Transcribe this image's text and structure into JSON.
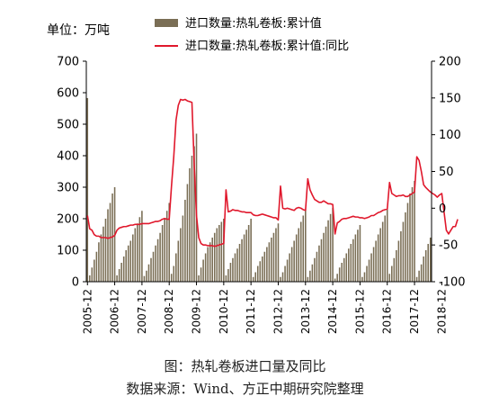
{
  "chart_data": {
    "type": "bar+line",
    "unit_label": "单位：万吨",
    "left_axis": {
      "ylim": [
        0,
        700
      ],
      "ticks": [
        0,
        100,
        200,
        300,
        400,
        500,
        600,
        700
      ]
    },
    "right_axis": {
      "ylim": [
        -100,
        200
      ],
      "ticks": [
        -100,
        -50,
        0,
        50,
        100,
        150,
        200
      ]
    },
    "x_range": [
      "2005-12",
      "2018-12"
    ],
    "x_tick_labels": [
      "2005-12",
      "2006-12",
      "2007-12",
      "2008-12",
      "2009-12",
      "2010-12",
      "2011-12",
      "2012-12",
      "2013-12",
      "2014-12",
      "2015-12",
      "2016-12",
      "2017-12",
      "2018-12"
    ],
    "grid": false,
    "legend": {
      "position": "top",
      "orientation": "vertical"
    },
    "colors": {
      "bars": "#7a6e55",
      "line": "#e0182c",
      "axis": "#000000"
    },
    "series": [
      {
        "name": "进口数量:热轧卷板:累计值",
        "kind": "bar",
        "axis": "left",
        "values": [
          583,
          20,
          45,
          70,
          95,
          125,
          150,
          175,
          200,
          230,
          250,
          280,
          300,
          20,
          40,
          60,
          80,
          100,
          115,
          130,
          150,
          170,
          185,
          205,
          225,
          18,
          35,
          55,
          75,
          95,
          115,
          135,
          155,
          180,
          200,
          225,
          250,
          25,
          50,
          90,
          130,
          170,
          210,
          260,
          310,
          360,
          400,
          430,
          470,
          20,
          45,
          70,
          90,
          110,
          125,
          140,
          155,
          170,
          180,
          190,
          200,
          20,
          40,
          60,
          75,
          90,
          105,
          120,
          135,
          150,
          165,
          180,
          200,
          15,
          30,
          50,
          65,
          80,
          95,
          110,
          125,
          140,
          155,
          170,
          185,
          15,
          30,
          50,
          70,
          90,
          110,
          130,
          150,
          170,
          190,
          210,
          230,
          15,
          35,
          55,
          75,
          95,
          115,
          135,
          155,
          175,
          195,
          215,
          235,
          10,
          25,
          45,
          60,
          75,
          90,
          105,
          120,
          135,
          150,
          165,
          180,
          15,
          30,
          50,
          70,
          90,
          110,
          130,
          150,
          170,
          190,
          210,
          230,
          25,
          50,
          75,
          100,
          130,
          160,
          190,
          220,
          250,
          280,
          300,
          320,
          15,
          35,
          55,
          80,
          100,
          120,
          140
        ]
      },
      {
        "name": "进口数量:热轧卷板:累计值:同比",
        "kind": "line",
        "axis": "right",
        "values": [
          -10,
          -28,
          -30,
          -36,
          -38,
          -38,
          -40,
          -40,
          -40,
          -41,
          -40,
          -39,
          -37,
          -30,
          -27,
          -26,
          -25,
          -25,
          -24,
          -23,
          -23,
          -22,
          -22,
          -22,
          -21,
          -21,
          -21,
          -21,
          -20,
          -19,
          -18,
          -18,
          -17,
          -15,
          -14,
          -15,
          -15,
          30,
          70,
          120,
          140,
          148,
          147,
          148,
          146,
          145,
          144,
          60,
          -10,
          -40,
          -48,
          -50,
          -50,
          -51,
          -51,
          -51,
          -52,
          -51,
          -50,
          -49,
          -48,
          25,
          -5,
          -4,
          -2,
          -3,
          -3,
          -4,
          -5,
          -5,
          -6,
          -6,
          -6,
          -9,
          -10,
          -10,
          -9,
          -8,
          -9,
          -10,
          -11,
          -12,
          -13,
          -13,
          -16,
          30,
          0,
          -1,
          0,
          -1,
          -2,
          -3,
          0,
          1,
          0,
          -2,
          -3,
          40,
          25,
          18,
          12,
          10,
          8,
          8,
          10,
          8,
          6,
          6,
          5,
          -35,
          -20,
          -18,
          -15,
          -14,
          -14,
          -13,
          -12,
          -11,
          -12,
          -12,
          -13,
          -13,
          -14,
          -13,
          -12,
          -10,
          -10,
          -8,
          -6,
          -5,
          -3,
          -2,
          -1,
          35,
          20,
          18,
          16,
          17,
          17,
          18,
          16,
          16,
          18,
          20,
          22,
          70,
          65,
          50,
          32,
          28,
          25,
          22,
          20,
          18,
          15,
          18,
          20,
          -5,
          -30,
          -35,
          -30,
          -25,
          -25,
          -15
        ]
      }
    ]
  },
  "caption": {
    "title": "图：热轧卷板进口量及同比",
    "source": "数据来源：Wind、方正中期研究院整理"
  }
}
